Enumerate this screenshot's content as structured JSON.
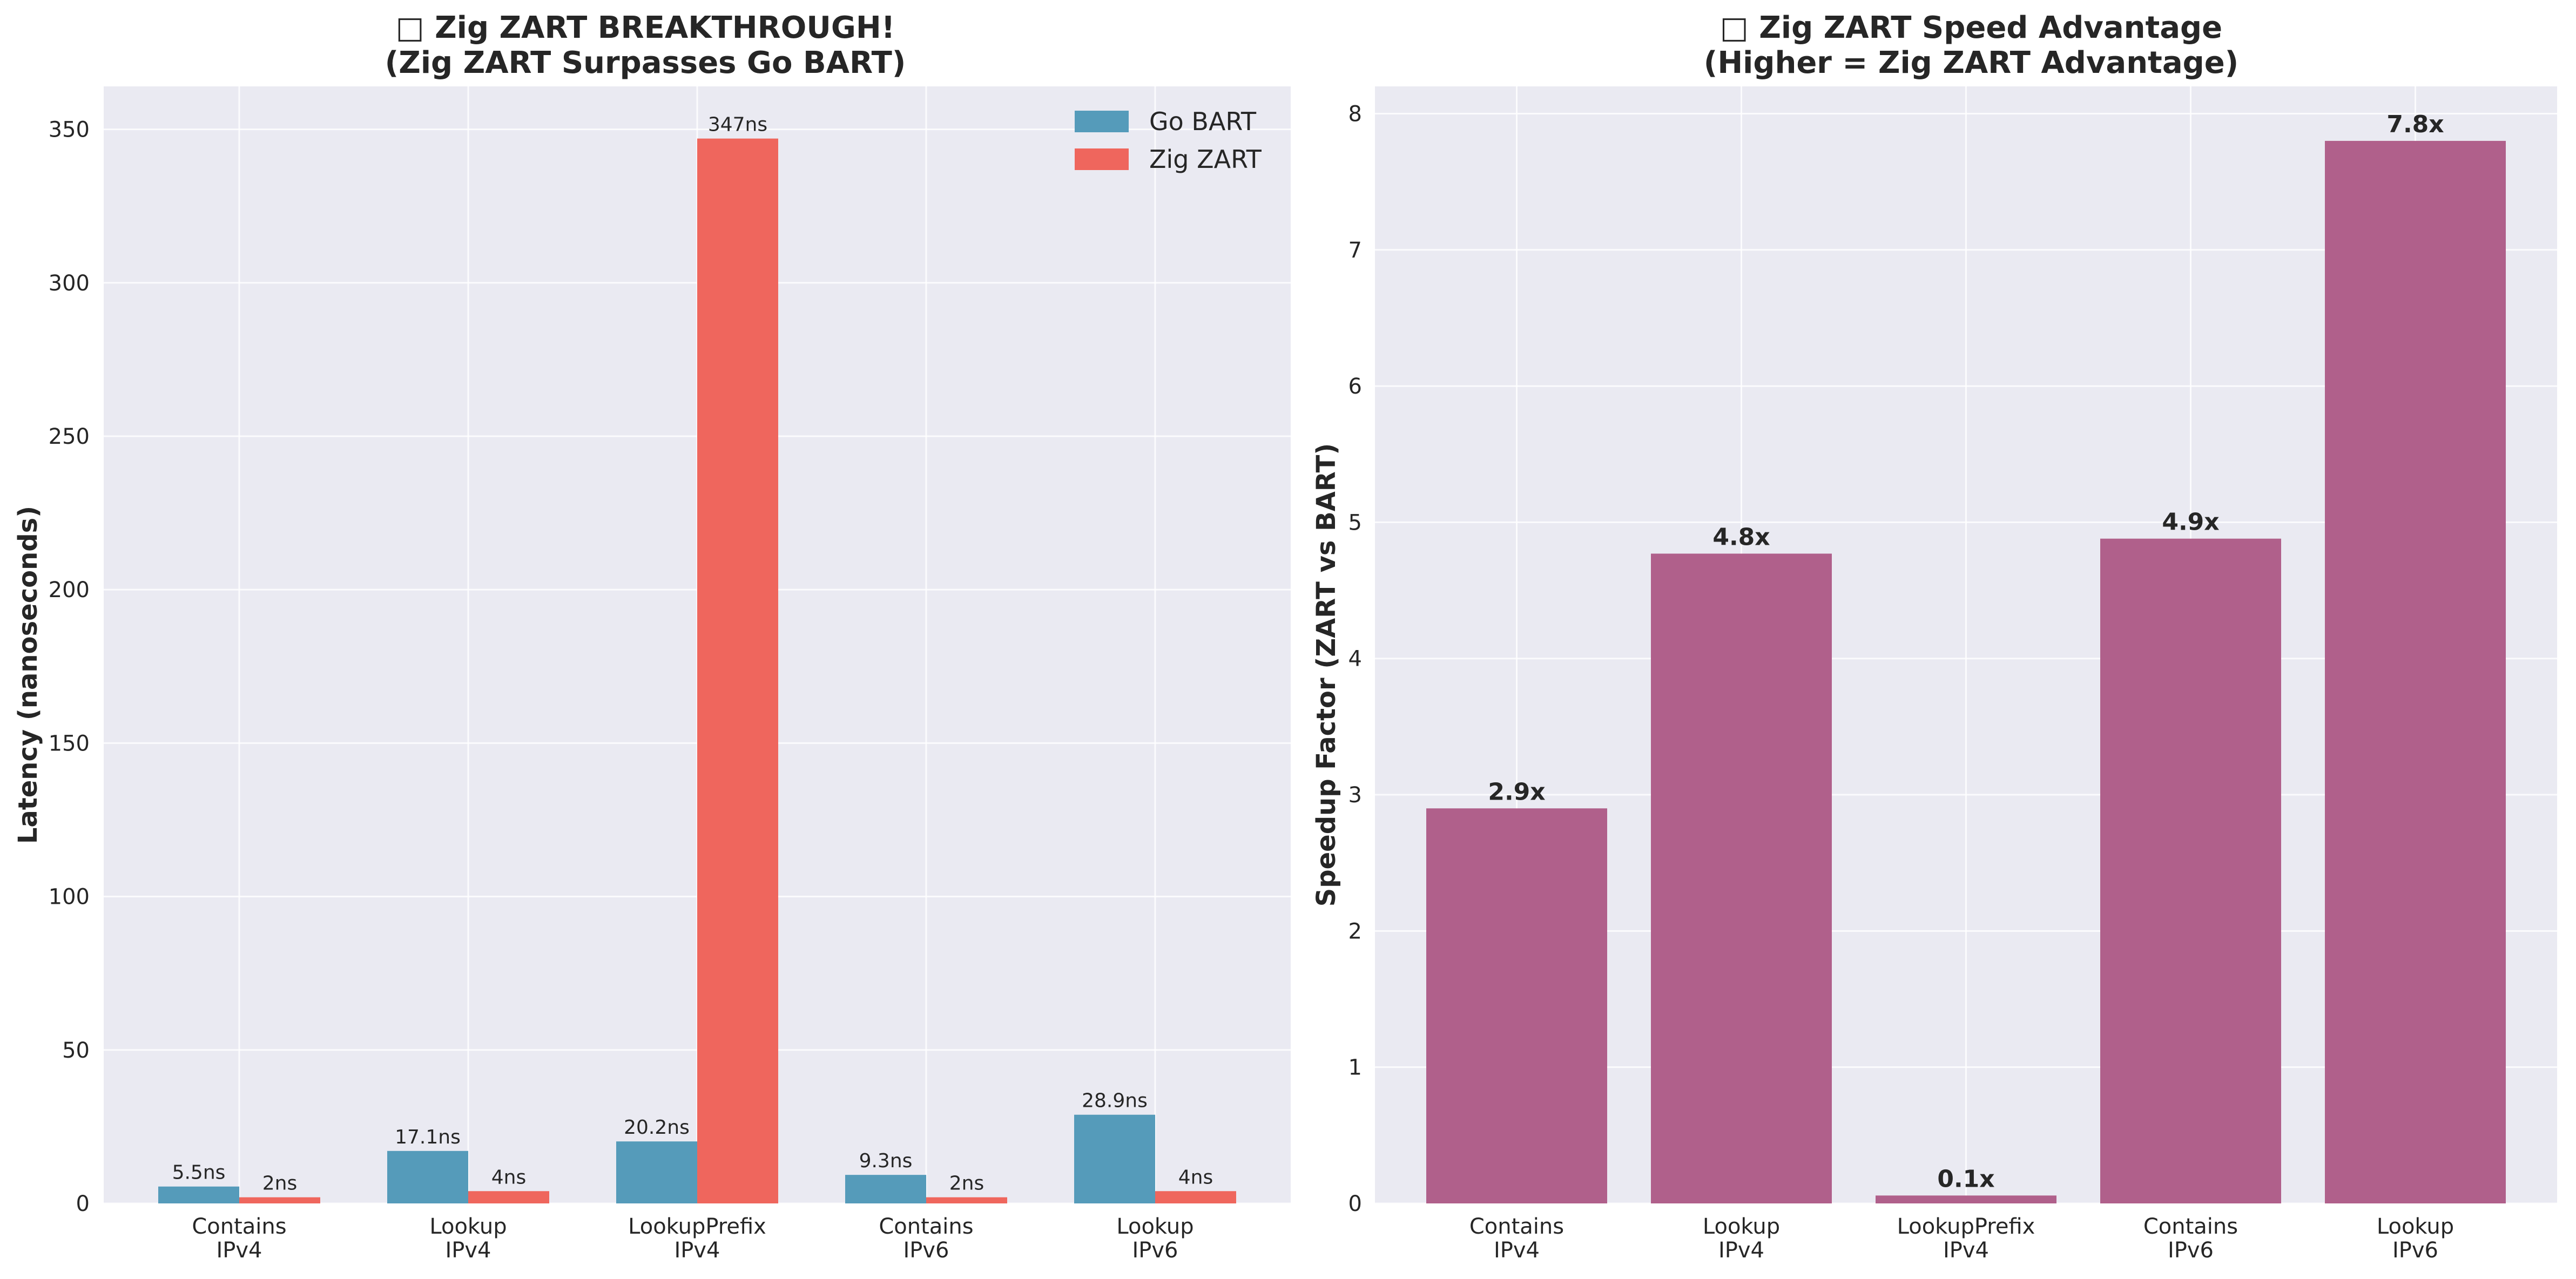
{
  "chart_data": [
    {
      "type": "bar",
      "title": "□ Zig ZART BREAKTHROUGH!",
      "subtitle": "(Zig ZART Surpasses Go BART)",
      "xlabel": "",
      "ylabel": "Latency (nanoseconds)",
      "ylim": [
        0,
        364
      ],
      "yticks": [
        0,
        50,
        100,
        150,
        200,
        250,
        300,
        350
      ],
      "grid": true,
      "legend": "top-right",
      "categories": [
        [
          "Contains",
          "IPv4"
        ],
        [
          "Lookup",
          "IPv4"
        ],
        [
          "LookupPrefix",
          "IPv4"
        ],
        [
          "Contains",
          "IPv6"
        ],
        [
          "Lookup",
          "IPv6"
        ]
      ],
      "series": [
        {
          "name": "Go BART",
          "color": "#559bba",
          "values": [
            5.5,
            17.1,
            20.2,
            9.3,
            28.9
          ],
          "labels": [
            "5.5ns",
            "17.1ns",
            "20.2ns",
            "9.3ns",
            "28.9ns"
          ]
        },
        {
          "name": "Zig ZART",
          "color": "#ef665d",
          "values": [
            2,
            4,
            347,
            2,
            4
          ],
          "labels": [
            "2ns",
            "4ns",
            "347ns",
            "2ns",
            "4ns"
          ]
        }
      ]
    },
    {
      "type": "bar",
      "title": "□ Zig ZART Speed Advantage",
      "subtitle": "(Higher = Zig ZART Advantage)",
      "xlabel": "",
      "ylabel": "Speedup Factor (ZART vs BART)",
      "ylim": [
        0,
        8.2
      ],
      "yticks": [
        0,
        1,
        2,
        3,
        4,
        5,
        6,
        7,
        8
      ],
      "grid": true,
      "categories": [
        [
          "Contains",
          "IPv4"
        ],
        [
          "Lookup",
          "IPv4"
        ],
        [
          "LookupPrefix",
          "IPv4"
        ],
        [
          "Contains",
          "IPv6"
        ],
        [
          "Lookup",
          "IPv6"
        ]
      ],
      "series": [
        {
          "color": "#b0608b",
          "values": [
            2.9,
            4.77,
            0.058,
            4.88,
            7.8
          ],
          "labels": [
            "2.9x",
            "4.8x",
            "0.1x",
            "4.9x",
            "7.8x"
          ]
        }
      ]
    }
  ]
}
